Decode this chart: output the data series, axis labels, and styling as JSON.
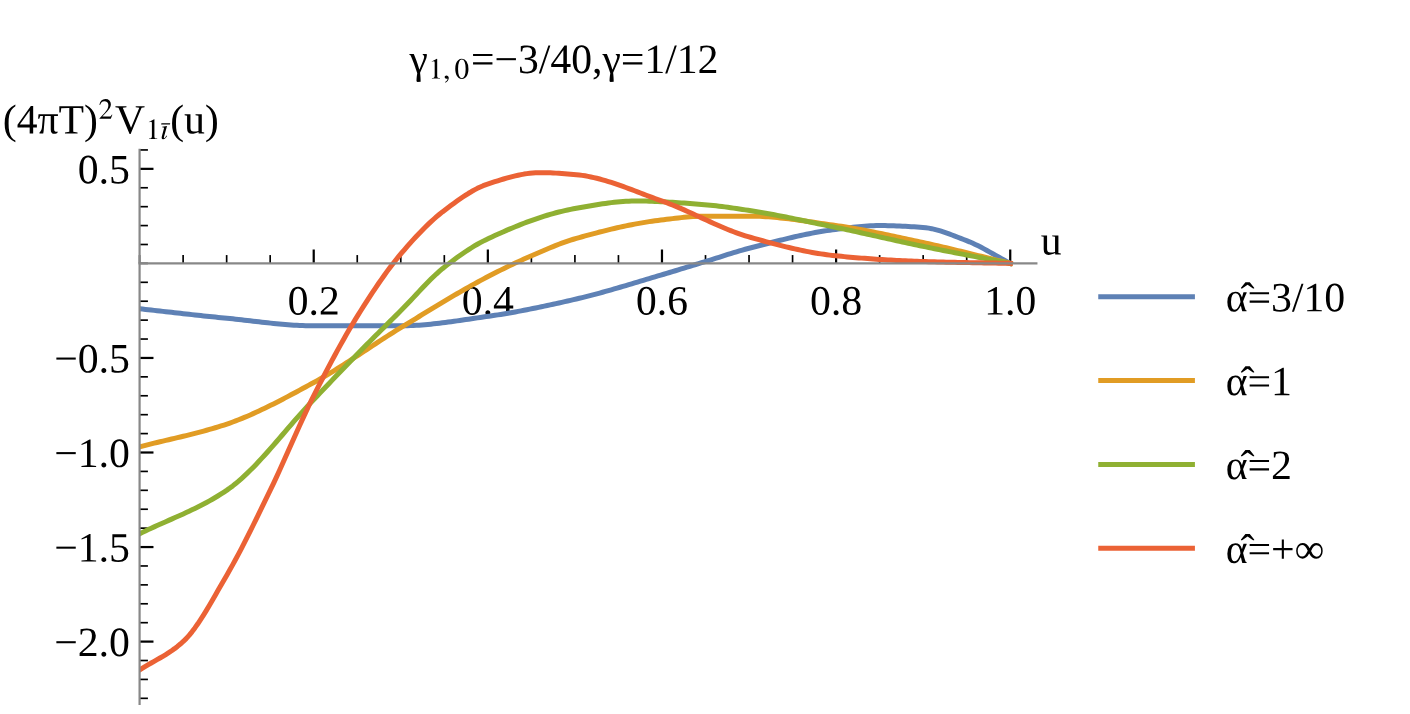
{
  "chart_data": {
    "type": "line",
    "title": "γ$_{1,0}$=−3/40,γ=1/12",
    "xlabel": "u",
    "ylabel": "(4πT)$^{2}$V$_{1ī}$(u)",
    "xlim": [
      0,
      1.03
    ],
    "ylim": [
      -2.33,
      0.6
    ],
    "xticks": [
      0.2,
      0.4,
      0.6,
      0.8,
      {
        "value": 1,
        "label": "1.0"
      }
    ],
    "yticks": [
      {
        "value": -2,
        "label": "−2.0"
      },
      -1.5,
      {
        "value": -1,
        "label": "−1.0"
      },
      -0.5,
      0.5
    ],
    "legend": "right",
    "grid": false,
    "marker": "none",
    "line_style": "solid",
    "series": [
      {
        "name": "α̂=3/10",
        "color": "#5e81b5",
        "x": [
          0,
          0.1,
          0.2,
          0.3,
          0.4,
          0.5,
          0.6,
          0.65,
          0.7,
          0.8,
          0.85,
          0.9,
          0.95,
          1.0
        ],
        "values": [
          -0.24,
          -0.29,
          -0.33,
          -0.33,
          -0.28,
          -0.19,
          -0.06,
          0.01,
          0.08,
          0.18,
          0.2,
          0.19,
          0.12,
          0
        ]
      },
      {
        "name": "α̂=1",
        "color": "#e19c24",
        "x": [
          0,
          0.1,
          0.2,
          0.3,
          0.4,
          0.45,
          0.5,
          0.6,
          0.65,
          0.7,
          0.8,
          0.9,
          1.0
        ],
        "values": [
          -0.97,
          -0.85,
          -0.63,
          -0.34,
          -0.07,
          0.04,
          0.13,
          0.23,
          0.25,
          0.25,
          0.2,
          0.11,
          0
        ]
      },
      {
        "name": "α̂=2",
        "color": "#8fb032",
        "x": [
          0,
          0.1,
          0.2,
          0.25,
          0.3,
          0.35,
          0.4,
          0.5,
          0.57,
          0.65,
          0.7,
          0.8,
          0.9,
          1.0
        ],
        "values": [
          -1.43,
          -1.2,
          -0.72,
          -0.48,
          -0.25,
          -0.02,
          0.13,
          0.29,
          0.33,
          0.31,
          0.28,
          0.19,
          0.09,
          0
        ]
      },
      {
        "name": "α̂=+∞",
        "color": "#eb6235",
        "x": [
          0,
          0.05,
          0.1,
          0.15,
          0.2,
          0.25,
          0.3,
          0.35,
          0.4,
          0.46,
          0.5,
          0.6,
          0.7,
          0.8,
          0.9,
          1.0
        ],
        "values": [
          -2.15,
          -2.0,
          -1.65,
          -1.2,
          -0.7,
          -0.28,
          0.05,
          0.28,
          0.42,
          0.48,
          0.47,
          0.33,
          0.14,
          0.04,
          0.01,
          0
        ]
      }
    ]
  }
}
